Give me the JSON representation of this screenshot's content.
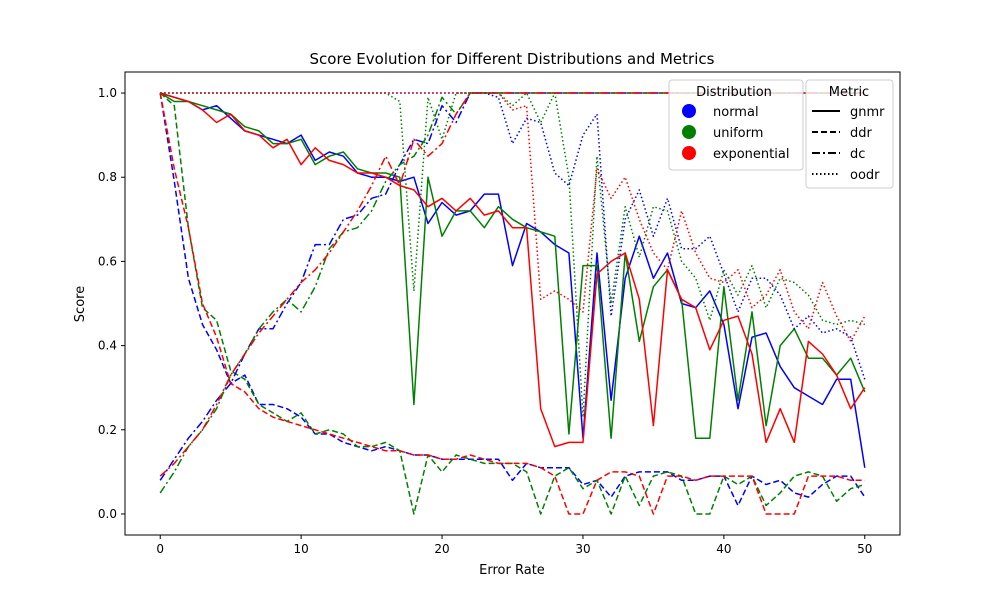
{
  "chart_data": {
    "type": "line",
    "title": "Score Evolution for Different Distributions and Metrics",
    "xlabel": "Error Rate",
    "ylabel": "Score",
    "xlim": [
      -2.5,
      52.5
    ],
    "ylim": [
      -0.05,
      1.05
    ],
    "xticks": [
      0,
      10,
      20,
      30,
      40,
      50
    ],
    "yticks": [
      0.0,
      0.2,
      0.4,
      0.6,
      0.8,
      1.0
    ],
    "ytick_labels": [
      "0.0",
      "0.2",
      "0.4",
      "0.6",
      "0.8",
      "1.0"
    ],
    "grid": false,
    "legend_distribution": {
      "title": "Distribution",
      "entries": [
        {
          "label": "normal",
          "color": "#0000ff"
        },
        {
          "label": "uniform",
          "color": "#008000"
        },
        {
          "label": "exponential",
          "color": "#ff0000"
        }
      ]
    },
    "legend_metric": {
      "title": "Metric",
      "entries": [
        {
          "label": "gnmr",
          "dash": "solid"
        },
        {
          "label": "ddr",
          "dash": "dashed"
        },
        {
          "label": "dc",
          "dash": "dashdot"
        },
        {
          "label": "oodr",
          "dash": "dotted"
        }
      ]
    },
    "x": [
      0,
      1,
      2,
      3,
      4,
      5,
      6,
      7,
      8,
      9,
      10,
      11,
      12,
      13,
      14,
      15,
      16,
      17,
      18,
      19,
      20,
      21,
      22,
      23,
      24,
      25,
      26,
      27,
      28,
      29,
      30,
      31,
      32,
      33,
      34,
      35,
      36,
      37,
      38,
      39,
      40,
      41,
      42,
      43,
      44,
      45,
      46,
      47,
      48,
      49,
      50
    ],
    "series": [
      {
        "distribution": "normal",
        "metric": "gnmr",
        "color": "#0000ff",
        "dash": "solid",
        "values": [
          1.0,
          0.99,
          0.98,
          0.96,
          0.97,
          0.94,
          0.91,
          0.9,
          0.89,
          0.88,
          0.9,
          0.84,
          0.86,
          0.85,
          0.81,
          0.8,
          0.8,
          0.79,
          0.8,
          0.69,
          0.74,
          0.71,
          0.72,
          0.76,
          0.76,
          0.59,
          0.69,
          0.67,
          0.64,
          0.62,
          0.18,
          0.62,
          0.27,
          0.56,
          0.66,
          0.56,
          0.62,
          0.5,
          0.49,
          0.53,
          0.45,
          0.25,
          0.42,
          0.43,
          0.35,
          0.3,
          0.28,
          0.26,
          0.32,
          0.32,
          0.11
        ]
      },
      {
        "distribution": "uniform",
        "metric": "gnmr",
        "color": "#008000",
        "dash": "solid",
        "values": [
          1.0,
          0.98,
          0.98,
          0.97,
          0.96,
          0.95,
          0.92,
          0.91,
          0.88,
          0.88,
          0.89,
          0.83,
          0.85,
          0.86,
          0.82,
          0.81,
          0.81,
          0.8,
          0.26,
          0.8,
          0.66,
          0.72,
          0.72,
          0.68,
          0.73,
          0.7,
          0.68,
          0.67,
          0.66,
          0.19,
          0.59,
          0.59,
          0.18,
          0.62,
          0.41,
          0.54,
          0.58,
          0.51,
          0.18,
          0.18,
          0.54,
          0.27,
          0.48,
          0.21,
          0.4,
          0.44,
          0.37,
          0.37,
          0.33,
          0.37,
          0.29
        ]
      },
      {
        "distribution": "exponential",
        "metric": "gnmr",
        "color": "#ff0000",
        "dash": "solid",
        "values": [
          1.0,
          0.99,
          0.98,
          0.96,
          0.93,
          0.95,
          0.91,
          0.9,
          0.87,
          0.89,
          0.83,
          0.87,
          0.84,
          0.83,
          0.81,
          0.81,
          0.8,
          0.78,
          0.77,
          0.73,
          0.75,
          0.72,
          0.75,
          0.71,
          0.72,
          0.68,
          0.68,
          0.25,
          0.16,
          0.17,
          0.17,
          0.57,
          0.6,
          0.62,
          0.51,
          0.21,
          0.58,
          0.51,
          0.49,
          0.39,
          0.46,
          0.47,
          0.38,
          0.17,
          0.25,
          0.17,
          0.41,
          0.38,
          0.33,
          0.25,
          0.3
        ]
      },
      {
        "distribution": "normal",
        "metric": "ddr",
        "color": "#0000ff",
        "dash": "dashed",
        "values": [
          1.0,
          0.79,
          0.56,
          0.45,
          0.39,
          0.31,
          0.33,
          0.26,
          0.26,
          0.25,
          0.23,
          0.19,
          0.19,
          0.17,
          0.16,
          0.15,
          0.16,
          0.15,
          0.14,
          0.14,
          0.13,
          0.13,
          0.13,
          0.13,
          0.13,
          0.08,
          0.12,
          0.11,
          0.11,
          0.11,
          0.07,
          0.08,
          0.04,
          0.09,
          0.1,
          0.1,
          0.1,
          0.08,
          0.08,
          0.09,
          0.09,
          0.02,
          0.09,
          0.07,
          0.08,
          0.05,
          0.04,
          0.07,
          0.09,
          0.09,
          0.04
        ]
      },
      {
        "distribution": "uniform",
        "metric": "ddr",
        "color": "#008000",
        "dash": "dashed",
        "values": [
          1.0,
          0.97,
          0.68,
          0.49,
          0.46,
          0.34,
          0.32,
          0.26,
          0.24,
          0.22,
          0.24,
          0.19,
          0.2,
          0.19,
          0.16,
          0.16,
          0.17,
          0.15,
          0.0,
          0.14,
          0.1,
          0.14,
          0.13,
          0.12,
          0.12,
          0.12,
          0.1,
          0.0,
          0.09,
          0.11,
          0.06,
          0.08,
          0.0,
          0.09,
          0.02,
          0.09,
          0.1,
          0.09,
          0.0,
          0.0,
          0.09,
          0.07,
          0.09,
          0.02,
          0.05,
          0.09,
          0.1,
          0.09,
          0.03,
          0.06,
          0.07
        ]
      },
      {
        "distribution": "exponential",
        "metric": "ddr",
        "color": "#ff0000",
        "dash": "dashed",
        "values": [
          1.0,
          0.82,
          0.68,
          0.5,
          0.42,
          0.31,
          0.29,
          0.25,
          0.23,
          0.22,
          0.21,
          0.2,
          0.19,
          0.18,
          0.17,
          0.16,
          0.15,
          0.15,
          0.14,
          0.14,
          0.13,
          0.13,
          0.14,
          0.13,
          0.12,
          0.12,
          0.12,
          0.11,
          0.09,
          0.0,
          0.0,
          0.08,
          0.1,
          0.1,
          0.09,
          0.0,
          0.09,
          0.09,
          0.08,
          0.09,
          0.09,
          0.09,
          0.09,
          0.0,
          0.0,
          0.0,
          0.09,
          0.09,
          0.09,
          0.08,
          0.08
        ]
      },
      {
        "distribution": "normal",
        "metric": "dc",
        "color": "#0000ff",
        "dash": "dashdot",
        "values": [
          0.08,
          0.13,
          0.18,
          0.22,
          0.27,
          0.31,
          0.38,
          0.44,
          0.44,
          0.5,
          0.55,
          0.64,
          0.64,
          0.7,
          0.71,
          0.75,
          0.76,
          0.83,
          0.89,
          0.88,
          0.97,
          0.93,
          1.0,
          1.0,
          1.0,
          1.0,
          1.0,
          1.0,
          1.0,
          1.0,
          1.0,
          1.0,
          1.0,
          1.0,
          1.0,
          1.0,
          1.0,
          1.0,
          1.0,
          1.0,
          1.0,
          1.0,
          1.0,
          1.0,
          1.0,
          1.0,
          1.0,
          1.0,
          1.0,
          1.0,
          1.0
        ]
      },
      {
        "distribution": "uniform",
        "metric": "dc",
        "color": "#008000",
        "dash": "dashdot",
        "values": [
          0.05,
          0.1,
          0.16,
          0.2,
          0.25,
          0.33,
          0.38,
          0.44,
          0.48,
          0.51,
          0.48,
          0.54,
          0.63,
          0.67,
          0.68,
          0.72,
          0.79,
          0.83,
          0.85,
          0.9,
          0.99,
          0.95,
          1.0,
          1.0,
          1.0,
          1.0,
          1.0,
          1.0,
          1.0,
          1.0,
          1.0,
          1.0,
          1.0,
          1.0,
          1.0,
          1.0,
          1.0,
          1.0,
          1.0,
          1.0,
          1.0,
          1.0,
          1.0,
          1.0,
          1.0,
          1.0,
          1.0,
          1.0,
          1.0,
          1.0,
          1.0
        ]
      },
      {
        "distribution": "exponential",
        "metric": "dc",
        "color": "#ff0000",
        "dash": "dashdot",
        "values": [
          0.09,
          0.12,
          0.16,
          0.2,
          0.26,
          0.33,
          0.38,
          0.43,
          0.47,
          0.51,
          0.55,
          0.58,
          0.62,
          0.67,
          0.72,
          0.78,
          0.85,
          0.78,
          0.89,
          0.85,
          0.88,
          0.95,
          1.0,
          1.0,
          1.0,
          1.0,
          1.0,
          1.0,
          1.0,
          1.0,
          1.0,
          1.0,
          1.0,
          1.0,
          1.0,
          1.0,
          1.0,
          1.0,
          1.0,
          1.0,
          1.0,
          1.0,
          1.0,
          1.0,
          1.0,
          1.0,
          1.0,
          1.0,
          1.0,
          1.0,
          1.0
        ]
      },
      {
        "distribution": "normal",
        "metric": "oodr",
        "color": "#0000ff",
        "dash": "dotted",
        "values": [
          1.0,
          1.0,
          1.0,
          1.0,
          1.0,
          1.0,
          1.0,
          1.0,
          1.0,
          1.0,
          1.0,
          1.0,
          1.0,
          1.0,
          1.0,
          1.0,
          1.0,
          1.0,
          1.0,
          1.0,
          1.0,
          1.0,
          1.0,
          1.0,
          0.99,
          0.88,
          0.94,
          0.93,
          0.81,
          0.78,
          0.9,
          0.95,
          0.47,
          0.7,
          0.77,
          0.66,
          0.75,
          0.63,
          0.63,
          0.66,
          0.57,
          0.48,
          0.56,
          0.56,
          0.52,
          0.44,
          0.47,
          0.43,
          0.44,
          0.42,
          0.32
        ]
      },
      {
        "distribution": "uniform",
        "metric": "oodr",
        "color": "#008000",
        "dash": "dotted",
        "values": [
          1.0,
          1.0,
          1.0,
          1.0,
          1.0,
          1.0,
          1.0,
          1.0,
          1.0,
          1.0,
          1.0,
          1.0,
          1.0,
          1.0,
          1.0,
          1.0,
          1.0,
          0.98,
          0.53,
          0.99,
          0.89,
          1.0,
          1.0,
          1.0,
          1.0,
          0.97,
          1.0,
          0.93,
          1.0,
          0.8,
          0.23,
          0.85,
          0.5,
          0.73,
          0.61,
          0.73,
          0.72,
          0.6,
          0.56,
          0.46,
          0.58,
          0.52,
          0.59,
          0.49,
          0.56,
          0.55,
          0.52,
          0.46,
          0.45,
          0.46,
          0.45
        ]
      },
      {
        "distribution": "exponential",
        "metric": "oodr",
        "color": "#ff0000",
        "dash": "dotted",
        "values": [
          1.0,
          1.0,
          1.0,
          1.0,
          1.0,
          1.0,
          1.0,
          1.0,
          1.0,
          1.0,
          1.0,
          1.0,
          1.0,
          1.0,
          1.0,
          1.0,
          1.0,
          1.0,
          1.0,
          1.0,
          1.0,
          1.0,
          1.0,
          1.0,
          1.0,
          0.96,
          0.97,
          0.51,
          0.53,
          0.51,
          0.48,
          0.82,
          0.75,
          0.8,
          0.7,
          0.62,
          0.58,
          0.72,
          0.62,
          0.56,
          0.55,
          0.58,
          0.49,
          0.52,
          0.58,
          0.48,
          0.44,
          0.55,
          0.47,
          0.41,
          0.47
        ]
      }
    ]
  }
}
